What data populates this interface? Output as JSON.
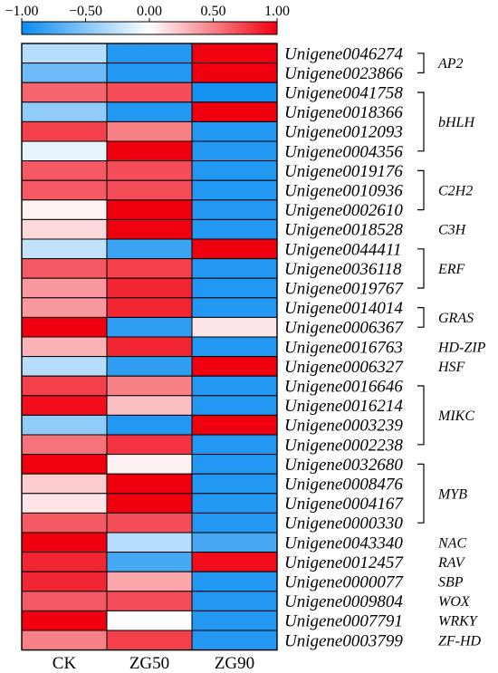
{
  "chart_data": {
    "type": "heatmap",
    "columns": [
      "CK",
      "ZG50",
      "ZG90"
    ],
    "color_scale": {
      "min": -1.0,
      "max": 1.0,
      "colors": [
        "#0a8cf0",
        "#ffffff",
        "#f0000f"
      ],
      "ticks": [
        -1.0,
        -0.5,
        0.0,
        0.5,
        1.0
      ],
      "tick_labels": [
        "−1.00",
        "−0.50",
        "0.00",
        "0.50",
        "1.00"
      ]
    },
    "rows": [
      {
        "gene": "Unigene0046274",
        "values": [
          -0.3,
          -0.9,
          1.0
        ]
      },
      {
        "gene": "Unigene0023866",
        "values": [
          -0.6,
          -0.9,
          1.0
        ]
      },
      {
        "gene": "Unigene0041758",
        "values": [
          0.6,
          0.7,
          -0.95
        ]
      },
      {
        "gene": "Unigene0018366",
        "values": [
          -0.45,
          -0.9,
          1.0
        ]
      },
      {
        "gene": "Unigene0012093",
        "values": [
          0.75,
          0.5,
          -0.9
        ]
      },
      {
        "gene": "Unigene0004356",
        "values": [
          -0.1,
          1.0,
          -0.9
        ]
      },
      {
        "gene": "Unigene0019176",
        "values": [
          0.65,
          0.7,
          -0.9
        ]
      },
      {
        "gene": "Unigene0010936",
        "values": [
          0.65,
          0.7,
          -0.9
        ]
      },
      {
        "gene": "Unigene0002610",
        "values": [
          0.05,
          1.0,
          -0.9
        ]
      },
      {
        "gene": "Unigene0018528",
        "values": [
          0.15,
          1.0,
          -0.9
        ]
      },
      {
        "gene": "Unigene0044411",
        "values": [
          -0.25,
          -0.8,
          1.0
        ]
      },
      {
        "gene": "Unigene0036118",
        "values": [
          0.65,
          0.75,
          -0.9
        ]
      },
      {
        "gene": "Unigene0019767",
        "values": [
          0.4,
          0.85,
          -0.9
        ]
      },
      {
        "gene": "Unigene0014014",
        "values": [
          0.4,
          0.85,
          -0.9
        ]
      },
      {
        "gene": "Unigene0006367",
        "values": [
          1.0,
          -0.85,
          0.1
        ]
      },
      {
        "gene": "Unigene0016763",
        "values": [
          0.3,
          0.85,
          -0.9
        ]
      },
      {
        "gene": "Unigene0006327",
        "values": [
          -0.3,
          -0.85,
          1.0
        ]
      },
      {
        "gene": "Unigene0016646",
        "values": [
          0.75,
          0.5,
          -0.9
        ]
      },
      {
        "gene": "Unigene0016214",
        "values": [
          0.95,
          0.25,
          -0.9
        ]
      },
      {
        "gene": "Unigene0003239",
        "values": [
          -0.45,
          -0.9,
          1.0
        ]
      },
      {
        "gene": "Unigene0002238",
        "values": [
          0.55,
          0.8,
          -0.9
        ]
      },
      {
        "gene": "Unigene0032680",
        "values": [
          1.0,
          0.05,
          -0.9
        ]
      },
      {
        "gene": "Unigene0008476",
        "values": [
          0.2,
          1.0,
          -0.9
        ]
      },
      {
        "gene": "Unigene0004167",
        "values": [
          0.1,
          1.0,
          -0.9
        ]
      },
      {
        "gene": "Unigene0000330",
        "values": [
          0.65,
          0.7,
          -0.9
        ]
      },
      {
        "gene": "Unigene0043340",
        "values": [
          1.0,
          -0.3,
          -0.75
        ]
      },
      {
        "gene": "Unigene0012457",
        "values": [
          0.85,
          -0.75,
          0.95
        ]
      },
      {
        "gene": "Unigene0000077",
        "values": [
          0.85,
          0.35,
          -0.9
        ]
      },
      {
        "gene": "Unigene0009804",
        "values": [
          0.65,
          0.7,
          -0.9
        ]
      },
      {
        "gene": "Unigene0007791",
        "values": [
          1.0,
          0.0,
          -0.9
        ]
      },
      {
        "gene": "Unigene0003799",
        "values": [
          0.5,
          0.75,
          -0.9
        ]
      }
    ],
    "families": [
      {
        "name": "AP2",
        "start": 0,
        "end": 1
      },
      {
        "name": "bHLH",
        "start": 2,
        "end": 5
      },
      {
        "name": "C2H2",
        "start": 6,
        "end": 8
      },
      {
        "name": "C3H",
        "start": 9,
        "end": 9
      },
      {
        "name": "ERF",
        "start": 10,
        "end": 12
      },
      {
        "name": "GRAS",
        "start": 13,
        "end": 14
      },
      {
        "name": "HD-ZIP",
        "start": 15,
        "end": 15
      },
      {
        "name": "HSF",
        "start": 16,
        "end": 16
      },
      {
        "name": "MIKC",
        "start": 17,
        "end": 20
      },
      {
        "name": "MYB",
        "start": 21,
        "end": 24
      },
      {
        "name": "NAC",
        "start": 25,
        "end": 25
      },
      {
        "name": "RAV",
        "start": 26,
        "end": 26
      },
      {
        "name": "SBP",
        "start": 27,
        "end": 27
      },
      {
        "name": "WOX",
        "start": 28,
        "end": 28
      },
      {
        "name": "WRKY",
        "start": 29,
        "end": 29
      },
      {
        "name": "ZF-HD",
        "start": 30,
        "end": 30
      }
    ]
  }
}
